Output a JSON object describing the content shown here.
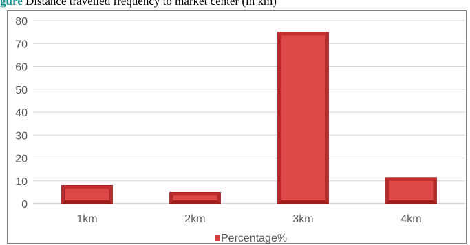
{
  "caption": {
    "lead": "gure",
    "rest": "  Distance travelled frequency to market center (in km)"
  },
  "colors": {
    "bar_fill": "#d63f3f",
    "bar_top": "#c12f2f",
    "bar_bottom": "#9e1d1d",
    "bar_side": "#b52a2a",
    "bar_face": "#dc4848",
    "bar_edge": "#8a1818",
    "grid": "#d0d0d0",
    "axis": "#a6a6a6",
    "tick_text": "#595959",
    "frame": "#7f7f7f"
  },
  "chart_data": {
    "type": "bar",
    "categories": [
      "1km",
      "2km",
      "3km",
      "4km"
    ],
    "series": [
      {
        "name": "Percentage%",
        "values": [
          8,
          5,
          75,
          11.5
        ]
      }
    ],
    "title": "",
    "xlabel": "",
    "ylabel": "",
    "ylim": [
      0,
      80
    ],
    "yticks": [
      "0",
      "10",
      "20",
      "30",
      "40",
      "50",
      "60",
      "70",
      "80"
    ],
    "grid": true,
    "legend": "bottom"
  }
}
